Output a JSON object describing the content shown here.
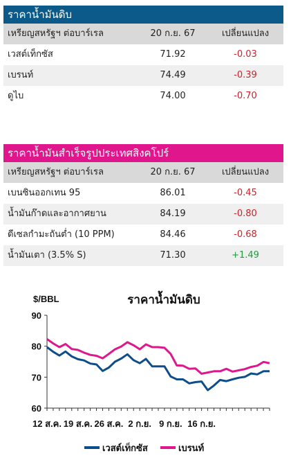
{
  "crude_table": {
    "title": "ราคาน้ำมันดิบ",
    "header": {
      "name": "เหรียญสหรัฐฯ ต่อบาร์เรล",
      "date": "20 ก.ย. 67",
      "change": "เปลี่ยนแปลง"
    },
    "rows": [
      {
        "name": "เวสต์เท็กซัส",
        "value": "71.92",
        "change": "-0.03"
      },
      {
        "name": "เบรนท์",
        "value": "74.49",
        "change": "-0.39"
      },
      {
        "name": "ดูไบ",
        "value": "74.00",
        "change": "-0.70"
      }
    ]
  },
  "singapore_table": {
    "title": "ราคาน้ำมันสำเร็จรูปประเทศสิงคโปร์",
    "header": {
      "name": "เหรียญสหรัฐฯ ต่อบาร์เรล",
      "date": "20 ก.ย. 67",
      "change": "เปลี่ยนแปลง"
    },
    "rows": [
      {
        "name": "เบนซินออกเทน 95",
        "value": "86.01",
        "change": "-0.45"
      },
      {
        "name": "น้ำมันก๊าดและอากาศยาน",
        "value": "84.19",
        "change": "-0.80"
      },
      {
        "name": "ดีเซลกำมะถันต่ำ (10 PPM)",
        "value": "84.46",
        "change": "-0.68"
      },
      {
        "name": "น้ำมันเตา (3.5% S)",
        "value": "71.30",
        "change": "+1.49"
      }
    ]
  },
  "chart_data": {
    "type": "line",
    "title": "ราคาน้ำมันดิบ",
    "ylabel": "$/BBL",
    "ylim": [
      60,
      90
    ],
    "yticks": [
      60,
      70,
      80,
      90
    ],
    "grid": false,
    "legend_position": "bottom",
    "x_ticks": [
      "12 ส.ค.",
      "19 ส.ค.",
      "26 ส.ค.",
      "2 ก.ย.",
      "9 ก.ย.",
      "16 ก.ย."
    ],
    "x_tick_index": [
      0,
      5,
      10,
      15,
      20,
      25
    ],
    "series": [
      {
        "name": "เวสต์เท็กซัส",
        "color": "#0d4d8a",
        "values": [
          79.7,
          78.2,
          77.0,
          78.3,
          76.7,
          75.8,
          75.4,
          74.4,
          74.1,
          72.0,
          73.1,
          75.0,
          76.0,
          77.4,
          75.5,
          74.5,
          75.9,
          73.5,
          73.5,
          73.5,
          70.2,
          69.3,
          69.3,
          68.0,
          68.4,
          68.6,
          65.8,
          67.3,
          69.1,
          68.7,
          69.3,
          69.8,
          70.1,
          71.2,
          70.9,
          71.9,
          71.9
        ]
      },
      {
        "name": "เบรนท์",
        "color": "#e0168c",
        "values": [
          82.3,
          80.9,
          79.7,
          80.7,
          79.1,
          78.8,
          77.9,
          77.2,
          76.9,
          76.1,
          77.5,
          79.0,
          79.9,
          81.3,
          80.3,
          79.0,
          80.6,
          79.7,
          79.7,
          79.5,
          77.5,
          73.8,
          73.7,
          72.7,
          72.8,
          71.1,
          71.5,
          71.9,
          71.9,
          72.7,
          71.8,
          72.2,
          72.6,
          73.3,
          73.7,
          74.9,
          74.5
        ]
      }
    ]
  }
}
